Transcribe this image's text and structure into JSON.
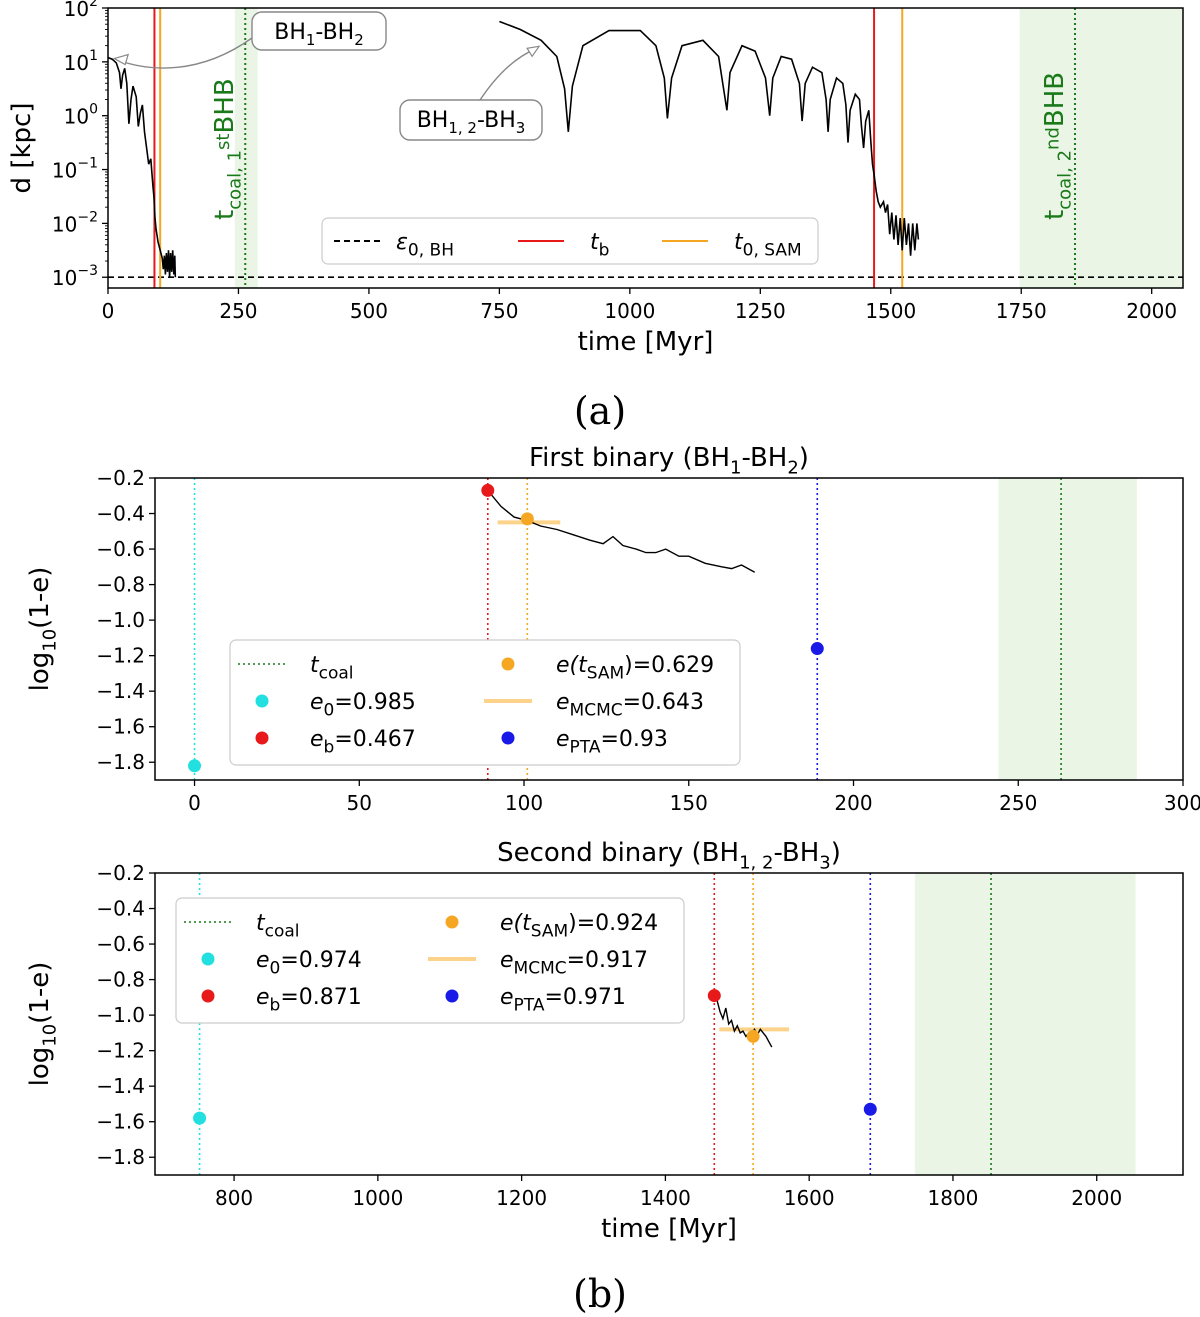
{
  "chart_data": [
    {
      "id": "a",
      "type": "line",
      "caption": "(a)",
      "xlabel": "time [Myr]",
      "ylabel": "d [kpc]",
      "xlim": [
        0,
        2060
      ],
      "ylim_log10": [
        -3.2,
        2
      ],
      "yscale": "log",
      "xticks": [
        0,
        250,
        500,
        750,
        1000,
        1250,
        1500,
        1750,
        2000
      ],
      "yticks_log10": [
        2,
        1,
        0,
        -1,
        -2,
        -3
      ],
      "ytick_labels": [
        {
          "b": "10",
          "e": "2"
        },
        {
          "b": "10",
          "e": "1"
        },
        {
          "b": "10",
          "e": "0"
        },
        {
          "b": "10",
          "e": "−1"
        },
        {
          "b": "10",
          "e": "−2"
        },
        {
          "b": "10",
          "e": "−3"
        }
      ],
      "epsilon_line_log10": -3,
      "vlines": [
        {
          "x": 89,
          "kind": "tb",
          "color": "#e8191a"
        },
        {
          "x": 100,
          "kind": "tsam",
          "color": "#f5a623"
        },
        {
          "x": 1468,
          "kind": "tb",
          "color": "#e8191a"
        },
        {
          "x": 1522,
          "kind": "tsam",
          "color": "#f5a623"
        }
      ],
      "coal_bands": [
        {
          "x0": 243,
          "x1": 287,
          "center": 263,
          "label": "t",
          "sub": "coal, 1",
          "sup": "st",
          "tail": "BHB"
        },
        {
          "x0": 1747,
          "x1": 2060,
          "center": 1853,
          "label": "t",
          "sub": "coal, 2",
          "sup": "nd",
          "tail": "BHB"
        }
      ],
      "series": [
        {
          "name": "BH1-BH2",
          "points": [
            [
              0,
              1.08
            ],
            [
              8,
              1.05
            ],
            [
              16,
              0.98
            ],
            [
              22,
              0.8
            ],
            [
              25,
              0.5
            ],
            [
              28,
              0.75
            ],
            [
              32,
              0.88
            ],
            [
              36,
              0.6
            ],
            [
              40,
              -0.15
            ],
            [
              44,
              0.3
            ],
            [
              48,
              0.55
            ],
            [
              54,
              0.35
            ],
            [
              58,
              -0.2
            ],
            [
              62,
              0.05
            ],
            [
              66,
              0.2
            ],
            [
              70,
              -0.3
            ],
            [
              74,
              -0.6
            ],
            [
              78,
              -0.9
            ],
            [
              82,
              -0.8
            ],
            [
              86,
              -1.3
            ],
            [
              88,
              -1.5
            ],
            [
              90,
              -1.9
            ],
            [
              92,
              -2.1
            ],
            [
              96,
              -2.35
            ],
            [
              100,
              -2.5
            ],
            [
              104,
              -2.65
            ],
            [
              106,
              -2.85
            ],
            [
              108,
              -2.6
            ],
            [
              110,
              -2.95
            ],
            [
              112,
              -2.55
            ],
            [
              114,
              -2.9
            ],
            [
              116,
              -2.5
            ],
            [
              118,
              -3.0
            ],
            [
              120,
              -2.55
            ],
            [
              122,
              -2.9
            ],
            [
              124,
              -2.5
            ],
            [
              126,
              -2.95
            ],
            [
              128,
              -2.6
            ],
            [
              129,
              -3.0
            ]
          ]
        },
        {
          "name": "BH1,2-BH3",
          "points": [
            [
              750,
              1.75
            ],
            [
              790,
              1.6
            ],
            [
              830,
              1.4
            ],
            [
              860,
              1.1
            ],
            [
              875,
              0.5
            ],
            [
              882,
              -0.3
            ],
            [
              890,
              0.55
            ],
            [
              910,
              1.3
            ],
            [
              960,
              1.58
            ],
            [
              1020,
              1.58
            ],
            [
              1050,
              1.3
            ],
            [
              1066,
              0.7
            ],
            [
              1072,
              -0.05
            ],
            [
              1080,
              0.7
            ],
            [
              1100,
              1.3
            ],
            [
              1140,
              1.4
            ],
            [
              1170,
              1.1
            ],
            [
              1186,
              0.1
            ],
            [
              1192,
              0.8
            ],
            [
              1215,
              1.3
            ],
            [
              1240,
              1.2
            ],
            [
              1260,
              0.7
            ],
            [
              1268,
              0.0
            ],
            [
              1274,
              0.7
            ],
            [
              1290,
              1.1
            ],
            [
              1310,
              1.05
            ],
            [
              1325,
              0.6
            ],
            [
              1330,
              -0.1
            ],
            [
              1336,
              0.6
            ],
            [
              1350,
              0.9
            ],
            [
              1368,
              0.8
            ],
            [
              1376,
              0.3
            ],
            [
              1380,
              -0.3
            ],
            [
              1384,
              0.3
            ],
            [
              1396,
              0.7
            ],
            [
              1408,
              0.6
            ],
            [
              1414,
              0.2
            ],
            [
              1418,
              -0.5
            ],
            [
              1422,
              0.1
            ],
            [
              1432,
              0.4
            ],
            [
              1440,
              0.3
            ],
            [
              1444,
              -0.2
            ],
            [
              1448,
              -0.6
            ],
            [
              1452,
              -0.1
            ],
            [
              1458,
              0.1
            ],
            [
              1462,
              -0.5
            ],
            [
              1465,
              -0.9
            ],
            [
              1468,
              -1.1
            ],
            [
              1472,
              -1.4
            ],
            [
              1476,
              -1.6
            ],
            [
              1480,
              -1.7
            ],
            [
              1486,
              -1.6
            ],
            [
              1490,
              -1.8
            ],
            [
              1494,
              -1.65
            ],
            [
              1498,
              -2.2
            ],
            [
              1502,
              -1.8
            ],
            [
              1506,
              -2.3
            ],
            [
              1510,
              -1.85
            ],
            [
              1514,
              -2.4
            ],
            [
              1518,
              -1.9
            ],
            [
              1522,
              -2.5
            ],
            [
              1526,
              -1.9
            ],
            [
              1530,
              -2.4
            ],
            [
              1534,
              -2.0
            ],
            [
              1538,
              -2.6
            ],
            [
              1542,
              -2.0
            ],
            [
              1546,
              -2.5
            ],
            [
              1550,
              -2.0
            ],
            [
              1553,
              -2.3
            ]
          ]
        }
      ],
      "legend": [
        {
          "kind": "dash",
          "color": "#000000",
          "label": "ε",
          "sub": "0, BH"
        },
        {
          "kind": "line",
          "color": "#e8191a",
          "label": "t",
          "sub": "b"
        },
        {
          "kind": "line",
          "color": "#f5a623",
          "label": "t",
          "sub": "0, SAM"
        }
      ],
      "annotations": [
        {
          "text": "BH",
          "parts": [
            [
              "BH",
              ""
            ],
            [
              "1",
              "sub"
            ],
            [
              "-BH",
              ""
            ],
            [
              "2",
              "sub"
            ]
          ],
          "target": [
            8,
            1.08
          ],
          "box_at": "top-left"
        },
        {
          "text": "BH",
          "parts": [
            [
              "BH",
              ""
            ],
            [
              "1, 2",
              "sub"
            ],
            [
              "-BH",
              ""
            ],
            [
              "3",
              "sub"
            ]
          ],
          "target": [
            830,
            1.4
          ],
          "box_at": "center-left"
        }
      ]
    },
    {
      "id": "b1",
      "type": "scatter",
      "title_parts": [
        [
          "First binary (BH",
          ""
        ],
        [
          "1",
          "sub"
        ],
        [
          "-BH",
          ""
        ],
        [
          "2",
          "sub"
        ],
        [
          ")",
          ""
        ]
      ],
      "xlabel": "",
      "ylabel": "log",
      "ylabel_sub": "10",
      "ylabel_tail": "(1-e)",
      "xlim": [
        -12,
        300
      ],
      "ylim": [
        -1.9,
        -0.2
      ],
      "xticks": [
        0,
        50,
        100,
        150,
        200,
        250,
        300
      ],
      "yticks": [
        -0.2,
        -0.4,
        -0.6,
        -0.8,
        -1.0,
        -1.2,
        -1.4,
        -1.6,
        -1.8
      ],
      "ytick_labels": [
        "−0.2",
        "−0.4",
        "−0.6",
        "−0.8",
        "−1.0",
        "−1.2",
        "−1.4",
        "−1.6",
        "−1.8"
      ],
      "coal_band": [
        244,
        286
      ],
      "t_coal": 263,
      "vlines": [
        {
          "x": 0,
          "color": "#22e0e0"
        },
        {
          "x": 89,
          "color": "#e8191a"
        },
        {
          "x": 101,
          "color": "#f5a623"
        },
        {
          "x": 189,
          "color": "#1a1ae8"
        }
      ],
      "points": [
        {
          "x": 0,
          "y": -1.82,
          "color": "#22e0e0"
        },
        {
          "x": 89,
          "y": -0.27,
          "color": "#e8191a"
        },
        {
          "x": 101,
          "y": -0.43,
          "color": "#f5a623"
        },
        {
          "x": 189,
          "y": -1.16,
          "color": "#1a1ae8"
        }
      ],
      "mcmc_bar": {
        "x0": 92,
        "x1": 111,
        "y": -0.45
      },
      "track": [
        [
          89,
          -0.27
        ],
        [
          93,
          -0.36
        ],
        [
          97,
          -0.42
        ],
        [
          101,
          -0.44
        ],
        [
          105,
          -0.47
        ],
        [
          110,
          -0.49
        ],
        [
          115,
          -0.52
        ],
        [
          120,
          -0.55
        ],
        [
          124,
          -0.57
        ],
        [
          127,
          -0.53
        ],
        [
          130,
          -0.58
        ],
        [
          134,
          -0.6
        ],
        [
          137,
          -0.62
        ],
        [
          140,
          -0.62
        ],
        [
          143,
          -0.6
        ],
        [
          147,
          -0.64
        ],
        [
          150,
          -0.64
        ],
        [
          155,
          -0.68
        ],
        [
          160,
          -0.7
        ],
        [
          163,
          -0.71
        ],
        [
          166,
          -0.69
        ],
        [
          170,
          -0.73
        ]
      ],
      "legend": [
        {
          "kind": "dot-line",
          "color": "#1a7a1a",
          "label": "t",
          "sub": "coal",
          "tail": ""
        },
        {
          "kind": "dot",
          "color": "#22e0e0",
          "label": "e",
          "sub": "0",
          "tail": "=0.985"
        },
        {
          "kind": "dot",
          "color": "#e8191a",
          "label": "e",
          "sub": "b",
          "tail": "=0.467"
        },
        {
          "kind": "dot",
          "color": "#f5a623",
          "label": "e(t",
          "sub": "SAM",
          "tail": ")=0.629"
        },
        {
          "kind": "bar",
          "color": "#fbd38a",
          "label": "e",
          "sub": "MCMC",
          "tail": "=0.643"
        },
        {
          "kind": "dot",
          "color": "#1a1ae8",
          "label": "e",
          "sub": "PTA",
          "tail": "=0.93"
        }
      ]
    },
    {
      "id": "b2",
      "type": "scatter",
      "caption": "(b)",
      "title_parts": [
        [
          "Second binary (BH",
          ""
        ],
        [
          "1, 2",
          "sub"
        ],
        [
          "-BH",
          ""
        ],
        [
          "3",
          "sub"
        ],
        [
          ")",
          ""
        ]
      ],
      "xlabel": "time [Myr]",
      "ylabel": "log",
      "ylabel_sub": "10",
      "ylabel_tail": "(1-e)",
      "xlim": [
        690,
        2120
      ],
      "ylim": [
        -1.9,
        -0.2
      ],
      "xticks": [
        800,
        1000,
        1200,
        1400,
        1600,
        1800,
        2000
      ],
      "yticks": [
        -0.2,
        -0.4,
        -0.6,
        -0.8,
        -1.0,
        -1.2,
        -1.4,
        -1.6,
        -1.8
      ],
      "ytick_labels": [
        "−0.2",
        "−0.4",
        "−0.6",
        "−0.8",
        "−1.0",
        "−1.2",
        "−1.4",
        "−1.6",
        "−1.8"
      ],
      "coal_band": [
        1747,
        2054
      ],
      "t_coal": 1853,
      "vlines": [
        {
          "x": 752,
          "color": "#22e0e0"
        },
        {
          "x": 1468,
          "color": "#e8191a"
        },
        {
          "x": 1522,
          "color": "#f5a623"
        },
        {
          "x": 1685,
          "color": "#1a1ae8"
        }
      ],
      "points": [
        {
          "x": 752,
          "y": -1.58,
          "color": "#22e0e0"
        },
        {
          "x": 1468,
          "y": -0.89,
          "color": "#e8191a"
        },
        {
          "x": 1522,
          "y": -1.12,
          "color": "#f5a623"
        },
        {
          "x": 1685,
          "y": -1.53,
          "color": "#1a1ae8"
        }
      ],
      "mcmc_bar": {
        "x0": 1475,
        "x1": 1572,
        "y": -1.08
      },
      "track": [
        [
          1468,
          -0.89
        ],
        [
          1472,
          -0.92
        ],
        [
          1476,
          -0.98
        ],
        [
          1480,
          -1.02
        ],
        [
          1484,
          -0.96
        ],
        [
          1488,
          -1.05
        ],
        [
          1492,
          -1.03
        ],
        [
          1496,
          -1.09
        ],
        [
          1500,
          -1.06
        ],
        [
          1504,
          -1.1
        ],
        [
          1508,
          -1.09
        ],
        [
          1512,
          -1.12
        ],
        [
          1516,
          -1.1
        ],
        [
          1520,
          -1.1
        ],
        [
          1524,
          -1.08
        ],
        [
          1528,
          -1.11
        ],
        [
          1532,
          -1.08
        ],
        [
          1536,
          -1.1
        ],
        [
          1540,
          -1.12
        ],
        [
          1544,
          -1.15
        ],
        [
          1548,
          -1.18
        ]
      ],
      "legend": [
        {
          "kind": "dot-line",
          "color": "#1a7a1a",
          "label": "t",
          "sub": "coal",
          "tail": ""
        },
        {
          "kind": "dot",
          "color": "#22e0e0",
          "label": "e",
          "sub": "0",
          "tail": "=0.974"
        },
        {
          "kind": "dot",
          "color": "#e8191a",
          "label": "e",
          "sub": "b",
          "tail": "=0.871"
        },
        {
          "kind": "dot",
          "color": "#f5a623",
          "label": "e(t",
          "sub": "SAM",
          "tail": ")=0.924"
        },
        {
          "kind": "bar",
          "color": "#fbd38a",
          "label": "e",
          "sub": "MCMC",
          "tail": "=0.917"
        },
        {
          "kind": "dot",
          "color": "#1a1ae8",
          "label": "e",
          "sub": "PTA",
          "tail": "=0.971"
        }
      ]
    }
  ]
}
